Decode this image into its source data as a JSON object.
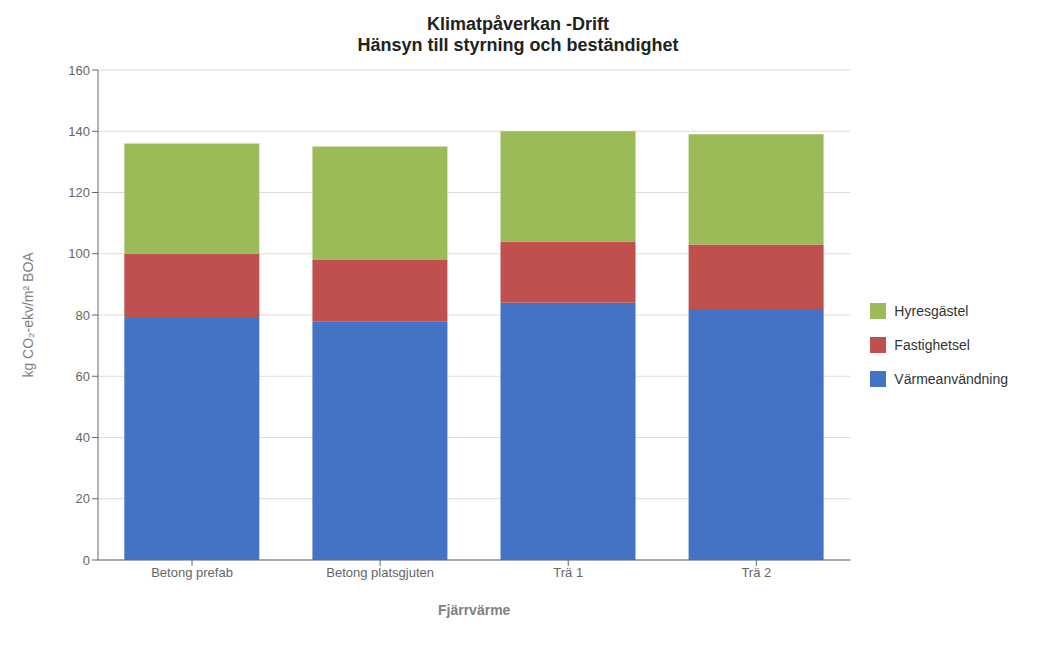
{
  "chart_data": {
    "type": "bar",
    "title": "Klimatpåverkan -Drift",
    "subtitle": "Hänsyn till styrning och beständighet",
    "x_label": "Fjärrvärme",
    "y_label": "kg CO₂-ekv/m² BOA",
    "categories": [
      "Betong prefab",
      "Betong platsgjuten",
      "Trä 1",
      "Trä 2"
    ],
    "series": [
      {
        "name": "Värmeanvändning",
        "color": "#4472C4",
        "values": [
          79,
          78,
          84,
          82
        ]
      },
      {
        "name": "Fastighetsel",
        "color": "#C0504D",
        "values": [
          21,
          20,
          20,
          21
        ]
      },
      {
        "name": "Hyresgästel",
        "color": "#9BBB59",
        "values": [
          36,
          37,
          36,
          36
        ]
      }
    ],
    "ylim": [
      0,
      160
    ],
    "yticks": [
      0,
      20,
      40,
      60,
      80,
      100,
      120,
      140,
      160
    ],
    "grid": true,
    "stacked": true,
    "legend": "right"
  }
}
